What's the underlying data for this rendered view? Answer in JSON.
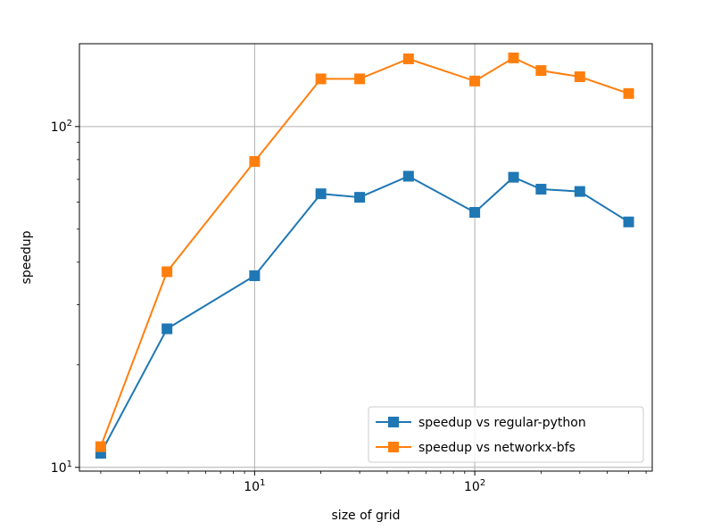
{
  "chart_data": {
    "type": "line",
    "xlabel": "size of grid",
    "ylabel": "speedup",
    "xscale": "log",
    "yscale": "log",
    "xlim": [
      1.6,
      640
    ],
    "ylim": [
      9.75,
      175
    ],
    "grid": true,
    "legend_position": "lower right",
    "x_ticks": [
      {
        "value": 10,
        "base": "10",
        "exp": "1"
      },
      {
        "value": 100,
        "base": "10",
        "exp": "2"
      }
    ],
    "y_ticks": [
      {
        "value": 10,
        "base": "10",
        "exp": "1"
      },
      {
        "value": 100,
        "base": "10",
        "exp": "2"
      }
    ],
    "x": [
      2,
      4,
      10,
      20,
      30,
      50,
      100,
      150,
      200,
      300,
      500
    ],
    "series": [
      {
        "name": "speedup vs regular-python",
        "color": "#1f77b4",
        "marker": "square",
        "values": [
          11.0,
          25.5,
          36.5,
          63.5,
          62.0,
          71.5,
          56.0,
          71.0,
          65.5,
          64.5,
          52.5
        ]
      },
      {
        "name": "speedup vs networkx-bfs",
        "color": "#ff7f0e",
        "marker": "square",
        "values": [
          11.5,
          37.5,
          79.0,
          138.0,
          138.0,
          158.0,
          136.0,
          159.0,
          146.0,
          140.0,
          125.0
        ]
      }
    ]
  }
}
